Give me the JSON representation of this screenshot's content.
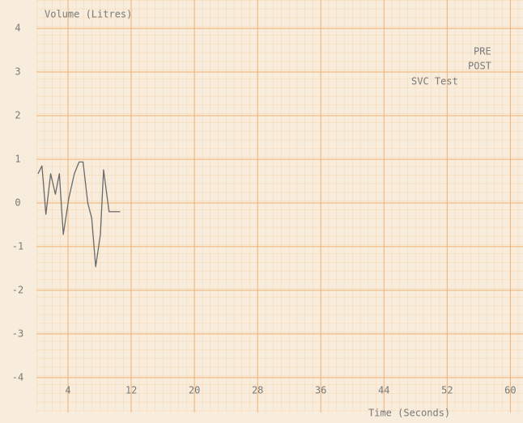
{
  "chart_data": {
    "type": "line",
    "y_label": "Volume (Litres)",
    "x_label": "Time (Seconds)",
    "annotations": [
      "PRE",
      "POST",
      "SVC Test"
    ],
    "x": [
      0.2,
      0.7,
      1.2,
      1.8,
      2.4,
      2.9,
      3.4,
      4.1,
      4.8,
      5.4,
      5.9,
      6.5,
      7.0,
      7.5,
      8.1,
      8.5,
      8.9,
      9.2,
      10.6
    ],
    "series": [
      {
        "color": "#6a6a6a",
        "values": [
          0.67,
          0.85,
          -0.26,
          0.67,
          0.2,
          0.67,
          -0.72,
          0.11,
          0.67,
          0.94,
          0.94,
          0,
          -0.35,
          -1.46,
          -0.72,
          0.76,
          0.2,
          -0.2,
          -0.2
        ]
      }
    ],
    "xlim": [
      0,
      61.6
    ],
    "ylim": [
      -4.8,
      4.65
    ],
    "xticks": [
      4,
      12,
      20,
      28,
      36,
      44,
      52,
      60
    ],
    "yticks": [
      -4,
      -3,
      -2,
      -1,
      0,
      1,
      2,
      3,
      4
    ],
    "grid": true
  }
}
